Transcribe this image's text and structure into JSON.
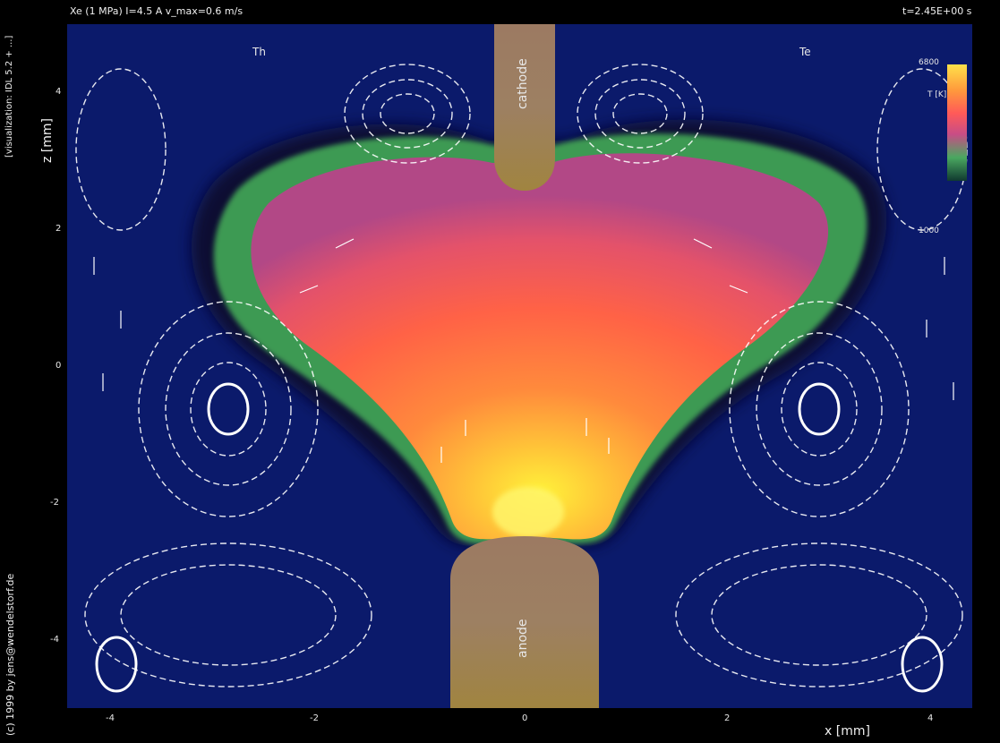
{
  "header": {
    "title": "Xe (1 MPa) I=4.5 A v_max=0.6 m/s",
    "time": "t=2.45E+00 s"
  },
  "side_notes": {
    "visualization": "[visualization: IDL 5.2 + ...]",
    "copyright": "(c) 1999 by jens@wendelstorf.de"
  },
  "axes": {
    "x_label": "x [mm]",
    "z_label": "z [mm]",
    "x_ticks": [
      "-4",
      "-2",
      "0",
      "2",
      "4"
    ],
    "z_ticks": [
      "4",
      "2",
      "0",
      "-2",
      "-4"
    ]
  },
  "panels": {
    "left_label": "Th",
    "right_label": "Te"
  },
  "electrodes": {
    "cathode": "cathode",
    "anode": "anode"
  },
  "colorbar": {
    "max": "6800",
    "unit": "T [K]",
    "min": "1000"
  },
  "colors": {
    "background": "#0b1a6b",
    "plasma_core": "#ff6a3a",
    "plasma_hot": "#fff23a",
    "plasma_edge": "#c4497e",
    "boundary": "#3c9a52",
    "electrode": "#9a7a5c",
    "arrows": "#ffffff"
  },
  "icons": {
    "flow_vector": "arrow-icon"
  }
}
